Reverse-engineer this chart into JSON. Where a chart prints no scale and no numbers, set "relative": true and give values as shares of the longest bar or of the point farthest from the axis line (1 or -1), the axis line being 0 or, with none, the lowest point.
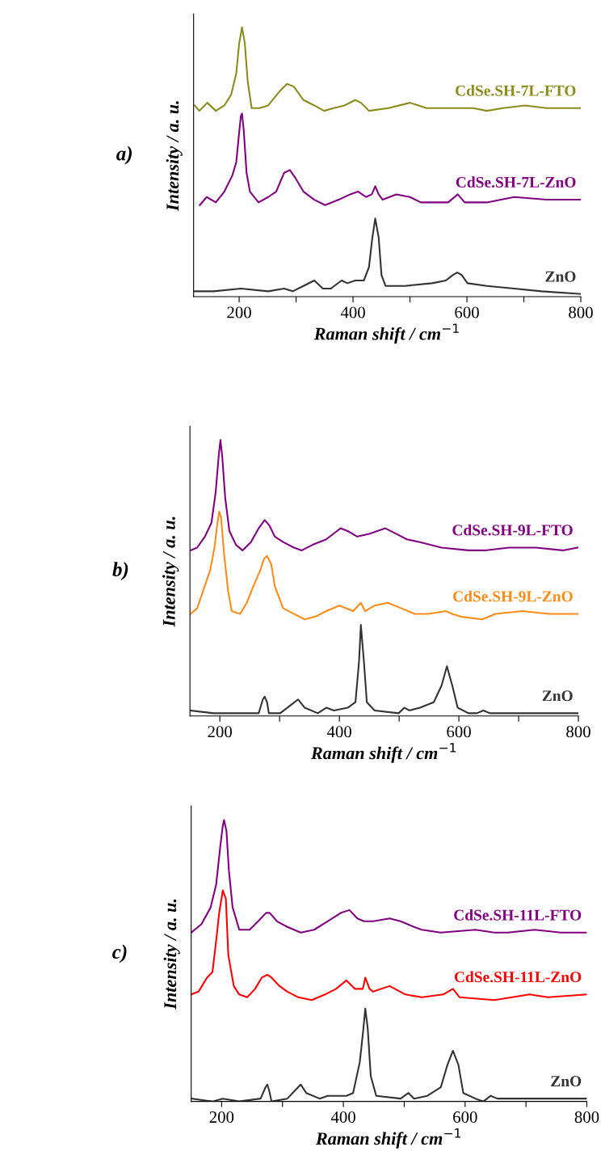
{
  "chart_data": [
    {
      "type": "line",
      "title": "a)",
      "xlabel": "Raman shift / cm$^{−1}$",
      "ylabel": "Intensity / a. u.",
      "relative": true,
      "xlim": [
        120,
        800
      ],
      "xticks": [
        200,
        {
          "value": 300,
          "label": null
        },
        400,
        {
          "value": 500,
          "label": null
        },
        600,
        {
          "value": 700,
          "label": null
        },
        800
      ],
      "grid": false,
      "legend": false,
      "line_style": "solid",
      "marker": "none",
      "series": [
        {
          "name": "CdSe.SH-7L-FTO",
          "color": "#8b8b1e",
          "x": [
            122,
            130,
            144,
            159,
            174,
            186,
            195,
            200,
            205,
            210,
            215,
            222,
            236,
            251,
            270,
            284,
            296,
            313,
            332,
            349,
            366,
            385,
            404,
            414,
            428,
            462,
            500,
            515,
            529,
            563,
            611,
            635,
            663,
            702,
            740,
            779,
            800
          ],
          "values": [
            0.71,
            0.69,
            0.72,
            0.69,
            0.71,
            0.75,
            0.83,
            0.94,
            1.0,
            0.94,
            0.8,
            0.7,
            0.7,
            0.71,
            0.76,
            0.79,
            0.78,
            0.73,
            0.71,
            0.69,
            0.7,
            0.71,
            0.73,
            0.72,
            0.69,
            0.7,
            0.72,
            0.71,
            0.7,
            0.7,
            0.7,
            0.69,
            0.7,
            0.71,
            0.7,
            0.7,
            0.7
          ]
        },
        {
          "name": "CdSe.SH-7L-ZnO",
          "color": "#800080",
          "x": [
            131,
            143,
            159,
            174,
            188,
            195,
            200,
            203,
            205,
            208,
            213,
            219,
            234,
            251,
            265,
            279,
            289,
            299,
            313,
            332,
            351,
            375,
            395,
            409,
            423,
            433,
            439,
            445,
            452,
            476,
            500,
            519,
            539,
            567,
            584,
            596,
            635,
            683,
            740,
            800
          ],
          "values": [
            0.34,
            0.37,
            0.35,
            0.39,
            0.45,
            0.5,
            0.61,
            0.67,
            0.68,
            0.62,
            0.46,
            0.39,
            0.35,
            0.37,
            0.39,
            0.46,
            0.47,
            0.44,
            0.39,
            0.36,
            0.34,
            0.36,
            0.38,
            0.39,
            0.37,
            0.38,
            0.41,
            0.38,
            0.36,
            0.38,
            0.37,
            0.35,
            0.35,
            0.35,
            0.38,
            0.35,
            0.35,
            0.37,
            0.36,
            0.36
          ]
        },
        {
          "name": "ZnO",
          "color": "#333333",
          "x": [
            122,
            155,
            203,
            251,
            279,
            294,
            313,
            332,
            347,
            361,
            380,
            390,
            404,
            419,
            428,
            434,
            439,
            445,
            450,
            457,
            491,
            539,
            563,
            575,
            583,
            591,
            601,
            635,
            683,
            731,
            800
          ],
          "values": [
            0.02,
            0.02,
            0.03,
            0.02,
            0.03,
            0.02,
            0.04,
            0.06,
            0.03,
            0.03,
            0.06,
            0.05,
            0.06,
            0.06,
            0.11,
            0.22,
            0.29,
            0.22,
            0.08,
            0.04,
            0.04,
            0.05,
            0.06,
            0.08,
            0.09,
            0.08,
            0.05,
            0.04,
            0.03,
            0.02,
            0.01
          ]
        }
      ]
    },
    {
      "type": "line",
      "title": "b)",
      "xlabel": "Raman shift / cm$^{−1}$",
      "ylabel": "Intensity / a. u.",
      "relative": true,
      "xlim": [
        150,
        800
      ],
      "xticks": [
        200,
        {
          "value": 300,
          "label": null
        },
        400,
        {
          "value": 500,
          "label": null
        },
        600,
        {
          "value": 700,
          "label": null
        },
        800
      ],
      "grid": false,
      "legend": false,
      "line_style": "solid",
      "marker": "none",
      "series": [
        {
          "name": "CdSe.SH-9L-FTO",
          "color": "#800080",
          "x": [
            151,
            162,
            175,
            186,
            193,
            198,
            201,
            204,
            209,
            216,
            227,
            238,
            252,
            265,
            275,
            283,
            292,
            306,
            324,
            337,
            355,
            378,
            396,
            402,
            414,
            430,
            450,
            477,
            495,
            513,
            535,
            571,
            616,
            643,
            684,
            729,
            774,
            799
          ],
          "values": [
            0.6,
            0.61,
            0.65,
            0.7,
            0.81,
            0.94,
            1.0,
            0.94,
            0.79,
            0.67,
            0.62,
            0.6,
            0.63,
            0.68,
            0.71,
            0.69,
            0.65,
            0.63,
            0.61,
            0.6,
            0.62,
            0.64,
            0.67,
            0.68,
            0.67,
            0.65,
            0.66,
            0.68,
            0.66,
            0.64,
            0.63,
            0.61,
            0.6,
            0.6,
            0.61,
            0.61,
            0.6,
            0.61
          ]
        },
        {
          "name": "CdSe.SH-9L-ZnO",
          "color": "#ff8c1a",
          "x": [
            151,
            162,
            173,
            184,
            191,
            196,
            199,
            202,
            207,
            214,
            220,
            234,
            245,
            256,
            268,
            274,
            279,
            286,
            292,
            306,
            324,
            342,
            360,
            378,
            400,
            423,
            436,
            443,
            459,
            481,
            504,
            526,
            549,
            578,
            589,
            603,
            639,
            661,
            706,
            751,
            799
          ],
          "values": [
            0.37,
            0.39,
            0.46,
            0.53,
            0.61,
            0.7,
            0.74,
            0.72,
            0.59,
            0.45,
            0.38,
            0.37,
            0.41,
            0.47,
            0.53,
            0.57,
            0.58,
            0.55,
            0.47,
            0.39,
            0.37,
            0.35,
            0.36,
            0.38,
            0.4,
            0.38,
            0.41,
            0.38,
            0.4,
            0.41,
            0.39,
            0.37,
            0.37,
            0.38,
            0.37,
            0.36,
            0.35,
            0.37,
            0.38,
            0.37,
            0.37
          ]
        },
        {
          "name": "ZnO",
          "color": "#333333",
          "x": [
            151,
            189,
            201,
            234,
            265,
            272,
            275,
            279,
            282,
            301,
            319,
            331,
            342,
            364,
            378,
            391,
            414,
            427,
            433,
            436,
            441,
            446,
            459,
            499,
            509,
            517,
            535,
            558,
            571,
            580,
            589,
            598,
            616,
            630,
            641,
            652,
            684,
            799
          ],
          "values": [
            0.02,
            0.01,
            0.01,
            0.01,
            0.01,
            0.06,
            0.07,
            0.05,
            0.01,
            0.01,
            0.04,
            0.06,
            0.03,
            0.01,
            0.03,
            0.02,
            0.03,
            0.05,
            0.2,
            0.33,
            0.2,
            0.05,
            0.02,
            0.01,
            0.03,
            0.02,
            0.03,
            0.05,
            0.11,
            0.18,
            0.11,
            0.03,
            0.01,
            0.01,
            0.02,
            0.01,
            0.01,
            0.01
          ]
        }
      ]
    },
    {
      "type": "line",
      "title": "c)",
      "xlabel": "Raman shift / cm$^{−1}$",
      "ylabel": "Intensity / a. u.",
      "relative": true,
      "xlim": [
        150,
        800
      ],
      "xticks": [
        200,
        {
          "value": 300,
          "label": null
        },
        400,
        {
          "value": 500,
          "label": null
        },
        600,
        {
          "value": 700,
          "label": null
        },
        800
      ],
      "grid": false,
      "legend": false,
      "line_style": "solid",
      "marker": "none",
      "series": [
        {
          "name": "CdSe.SH-11L-FTO",
          "color": "#800080",
          "x": [
            150,
            167,
            182,
            191,
            198,
            202,
            204,
            208,
            212,
            218,
            229,
            246,
            260,
            273,
            279,
            291,
            308,
            330,
            352,
            374,
            396,
            410,
            423,
            434,
            449,
            476,
            494,
            516,
            529,
            560,
            617,
            648,
            670,
            714,
            758,
            799
          ],
          "values": [
            0.6,
            0.63,
            0.69,
            0.77,
            0.91,
            0.98,
            1.0,
            0.96,
            0.82,
            0.69,
            0.61,
            0.61,
            0.64,
            0.67,
            0.67,
            0.64,
            0.62,
            0.6,
            0.61,
            0.64,
            0.67,
            0.68,
            0.65,
            0.64,
            0.64,
            0.65,
            0.64,
            0.62,
            0.61,
            0.6,
            0.61,
            0.6,
            0.6,
            0.61,
            0.6,
            0.6
          ]
        },
        {
          "name": "CdSe.SH-11L-ZnO",
          "color": "#ff0000",
          "x": [
            150,
            162,
            176,
            185,
            191,
            196,
            202,
            207,
            211,
            220,
            229,
            242,
            255,
            266,
            275,
            282,
            295,
            308,
            326,
            348,
            370,
            388,
            405,
            419,
            432,
            436,
            443,
            449,
            476,
            502,
            529,
            564,
            580,
            591,
            648,
            706,
            736,
            799
          ],
          "values": [
            0.38,
            0.39,
            0.44,
            0.46,
            0.57,
            0.67,
            0.75,
            0.72,
            0.52,
            0.41,
            0.38,
            0.37,
            0.4,
            0.44,
            0.45,
            0.44,
            0.41,
            0.39,
            0.37,
            0.36,
            0.38,
            0.4,
            0.43,
            0.4,
            0.4,
            0.44,
            0.4,
            0.39,
            0.41,
            0.38,
            0.37,
            0.38,
            0.4,
            0.37,
            0.36,
            0.38,
            0.37,
            0.38
          ]
        },
        {
          "name": "ZnO",
          "color": "#333333",
          "x": [
            150,
            185,
            202,
            229,
            264,
            272,
            275,
            278,
            282,
            308,
            321,
            330,
            339,
            361,
            374,
            388,
            405,
            416,
            427,
            433,
            436,
            440,
            445,
            454,
            494,
            507,
            516,
            538,
            560,
            571,
            580,
            589,
            597,
            617,
            630,
            642,
            653,
            714,
            799
          ],
          "values": [
            0.01,
            0.0,
            0.01,
            0.0,
            0.01,
            0.05,
            0.06,
            0.04,
            0.0,
            0.01,
            0.04,
            0.06,
            0.03,
            0.01,
            0.02,
            0.02,
            0.02,
            0.03,
            0.14,
            0.26,
            0.33,
            0.26,
            0.09,
            0.02,
            0.01,
            0.03,
            0.01,
            0.02,
            0.05,
            0.13,
            0.18,
            0.13,
            0.03,
            0.01,
            0.0,
            0.02,
            0.01,
            0.01,
            0.01
          ]
        }
      ]
    }
  ]
}
